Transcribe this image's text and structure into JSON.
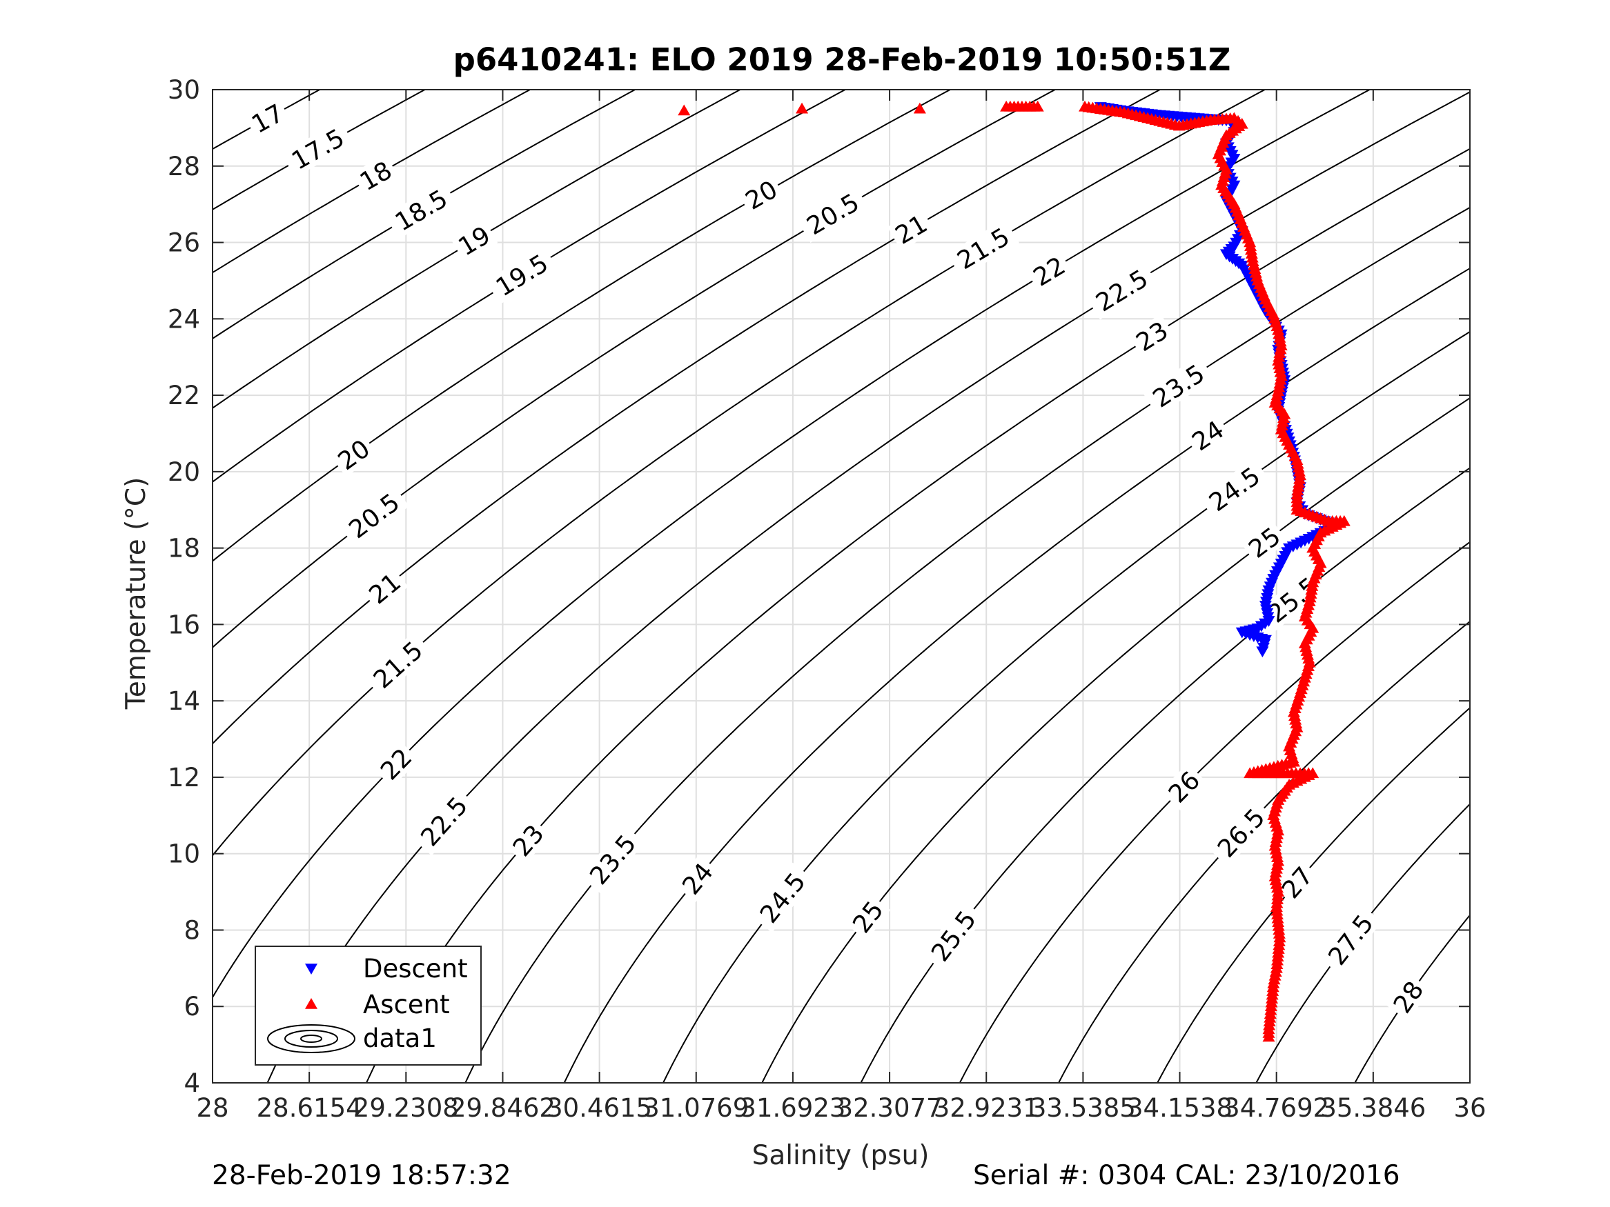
{
  "chart_data": {
    "type": "scatter",
    "title": "p6410241: ELO 2019 28-Feb-2019 10:50:51Z",
    "xlabel": "Salinity (psu)",
    "ylabel": "Temperature (°C)",
    "xlim": [
      28,
      36
    ],
    "ylim": [
      4,
      30
    ],
    "xticks": [
      28,
      28.6154,
      29.2308,
      29.8462,
      30.4615,
      31.0769,
      31.6923,
      32.3077,
      32.9231,
      33.5385,
      34.1538,
      34.7692,
      35.3846,
      36
    ],
    "xtick_labels": [
      "28",
      "28.6154",
      "29.2308",
      "29.8462",
      "30.4615",
      "31.0769",
      "31.6923",
      "32.3077",
      "32.9231",
      "33.5385",
      "34.1538",
      "34.7692",
      "35.3846",
      "36"
    ],
    "yticks": [
      4,
      6,
      8,
      10,
      12,
      14,
      16,
      18,
      20,
      22,
      24,
      26,
      28,
      30
    ],
    "ytick_labels": [
      "4",
      "6",
      "8",
      "10",
      "12",
      "14",
      "16",
      "18",
      "20",
      "22",
      "24",
      "26",
      "28",
      "30"
    ],
    "grid": true,
    "legend_position": "bottom-left",
    "contours": {
      "name": "data1",
      "levels": [
        17,
        17.5,
        18,
        18.5,
        19,
        19.5,
        20,
        20.5,
        21,
        21.5,
        22,
        22.5,
        23,
        23.5,
        24,
        24.5,
        25,
        25.5,
        26,
        26.5,
        27,
        27.5,
        28
      ],
      "color": "#000000"
    },
    "series": [
      {
        "name": "Descent",
        "marker": "triangle-down",
        "color": "#0000ff",
        "points": [
          [
            33.65,
            29.55
          ],
          [
            33.8,
            29.45
          ],
          [
            34.0,
            29.35
          ],
          [
            34.3,
            29.25
          ],
          [
            34.45,
            29.2
          ],
          [
            34.5,
            29.15
          ],
          [
            34.5,
            28.9
          ],
          [
            34.45,
            28.6
          ],
          [
            34.5,
            28.2
          ],
          [
            34.45,
            27.9
          ],
          [
            34.5,
            27.5
          ],
          [
            34.45,
            27.1
          ],
          [
            34.5,
            26.7
          ],
          [
            34.55,
            26.3
          ],
          [
            34.5,
            25.9
          ],
          [
            34.45,
            25.7
          ],
          [
            34.55,
            25.4
          ],
          [
            34.6,
            25.0
          ],
          [
            34.65,
            24.6
          ],
          [
            34.7,
            24.2
          ],
          [
            34.75,
            23.9
          ],
          [
            34.8,
            23.6
          ],
          [
            34.78,
            23.2
          ],
          [
            34.8,
            22.8
          ],
          [
            34.82,
            22.4
          ],
          [
            34.8,
            22.0
          ],
          [
            34.78,
            21.6
          ],
          [
            34.82,
            21.2
          ],
          [
            34.85,
            20.8
          ],
          [
            34.88,
            20.4
          ],
          [
            34.9,
            20.0
          ],
          [
            34.92,
            19.6
          ],
          [
            34.9,
            19.2
          ],
          [
            34.95,
            18.9
          ],
          [
            35.15,
            18.6
          ],
          [
            35.0,
            18.3
          ],
          [
            34.85,
            18.0
          ],
          [
            34.8,
            17.6
          ],
          [
            34.75,
            17.2
          ],
          [
            34.72,
            16.9
          ],
          [
            34.7,
            16.5
          ],
          [
            34.72,
            16.1
          ],
          [
            34.65,
            15.9
          ],
          [
            34.55,
            15.8
          ],
          [
            34.7,
            15.6
          ],
          [
            34.68,
            15.3
          ]
        ]
      },
      {
        "name": "Ascent",
        "marker": "triangle-up",
        "color": "#ff0000",
        "points": [
          [
            31.0,
            29.45
          ],
          [
            31.75,
            29.5
          ],
          [
            32.5,
            29.5
          ],
          [
            33.05,
            29.55
          ],
          [
            33.2,
            29.55
          ],
          [
            33.25,
            29.55
          ],
          [
            33.55,
            29.55
          ],
          [
            33.8,
            29.4
          ],
          [
            34.0,
            29.2
          ],
          [
            34.15,
            29.05
          ],
          [
            34.35,
            29.2
          ],
          [
            34.5,
            29.25
          ],
          [
            34.55,
            29.1
          ],
          [
            34.45,
            28.8
          ],
          [
            34.4,
            28.3
          ],
          [
            34.45,
            27.9
          ],
          [
            34.42,
            27.5
          ],
          [
            34.5,
            27.0
          ],
          [
            34.55,
            26.5
          ],
          [
            34.6,
            26.0
          ],
          [
            34.62,
            25.5
          ],
          [
            34.65,
            25.0
          ],
          [
            34.7,
            24.5
          ],
          [
            34.75,
            24.1
          ],
          [
            34.78,
            23.7
          ],
          [
            34.8,
            23.3
          ],
          [
            34.78,
            22.9
          ],
          [
            34.8,
            22.5
          ],
          [
            34.78,
            22.1
          ],
          [
            34.76,
            21.8
          ],
          [
            34.82,
            21.5
          ],
          [
            34.8,
            21.1
          ],
          [
            34.85,
            20.7
          ],
          [
            34.9,
            20.3
          ],
          [
            34.92,
            19.9
          ],
          [
            34.9,
            19.4
          ],
          [
            34.9,
            19.0
          ],
          [
            35.1,
            18.7
          ],
          [
            35.2,
            18.7
          ],
          [
            35.05,
            18.4
          ],
          [
            35.0,
            18.0
          ],
          [
            35.05,
            17.6
          ],
          [
            35.0,
            17.1
          ],
          [
            34.98,
            16.6
          ],
          [
            34.95,
            16.2
          ],
          [
            35.0,
            15.9
          ],
          [
            34.95,
            15.5
          ],
          [
            34.98,
            15.0
          ],
          [
            34.95,
            14.6
          ],
          [
            34.92,
            14.2
          ],
          [
            34.88,
            13.7
          ],
          [
            34.9,
            13.3
          ],
          [
            34.85,
            12.8
          ],
          [
            34.88,
            12.4
          ],
          [
            34.6,
            12.1
          ],
          [
            35.0,
            12.1
          ],
          [
            34.85,
            11.8
          ],
          [
            34.78,
            11.4
          ],
          [
            34.75,
            11.0
          ],
          [
            34.78,
            10.6
          ],
          [
            34.76,
            10.2
          ],
          [
            34.78,
            9.8
          ],
          [
            34.76,
            9.4
          ],
          [
            34.78,
            9.0
          ],
          [
            34.77,
            8.6
          ],
          [
            34.78,
            8.2
          ],
          [
            34.79,
            7.8
          ],
          [
            34.78,
            7.4
          ],
          [
            34.77,
            7.0
          ],
          [
            34.75,
            6.6
          ],
          [
            34.74,
            6.2
          ],
          [
            34.73,
            5.8
          ],
          [
            34.72,
            5.4
          ],
          [
            34.72,
            5.2
          ]
        ]
      }
    ]
  },
  "footer": {
    "timestamp": "28-Feb-2019 18:57:32",
    "serial": "Serial #: 0304  CAL: 23/10/2016"
  }
}
